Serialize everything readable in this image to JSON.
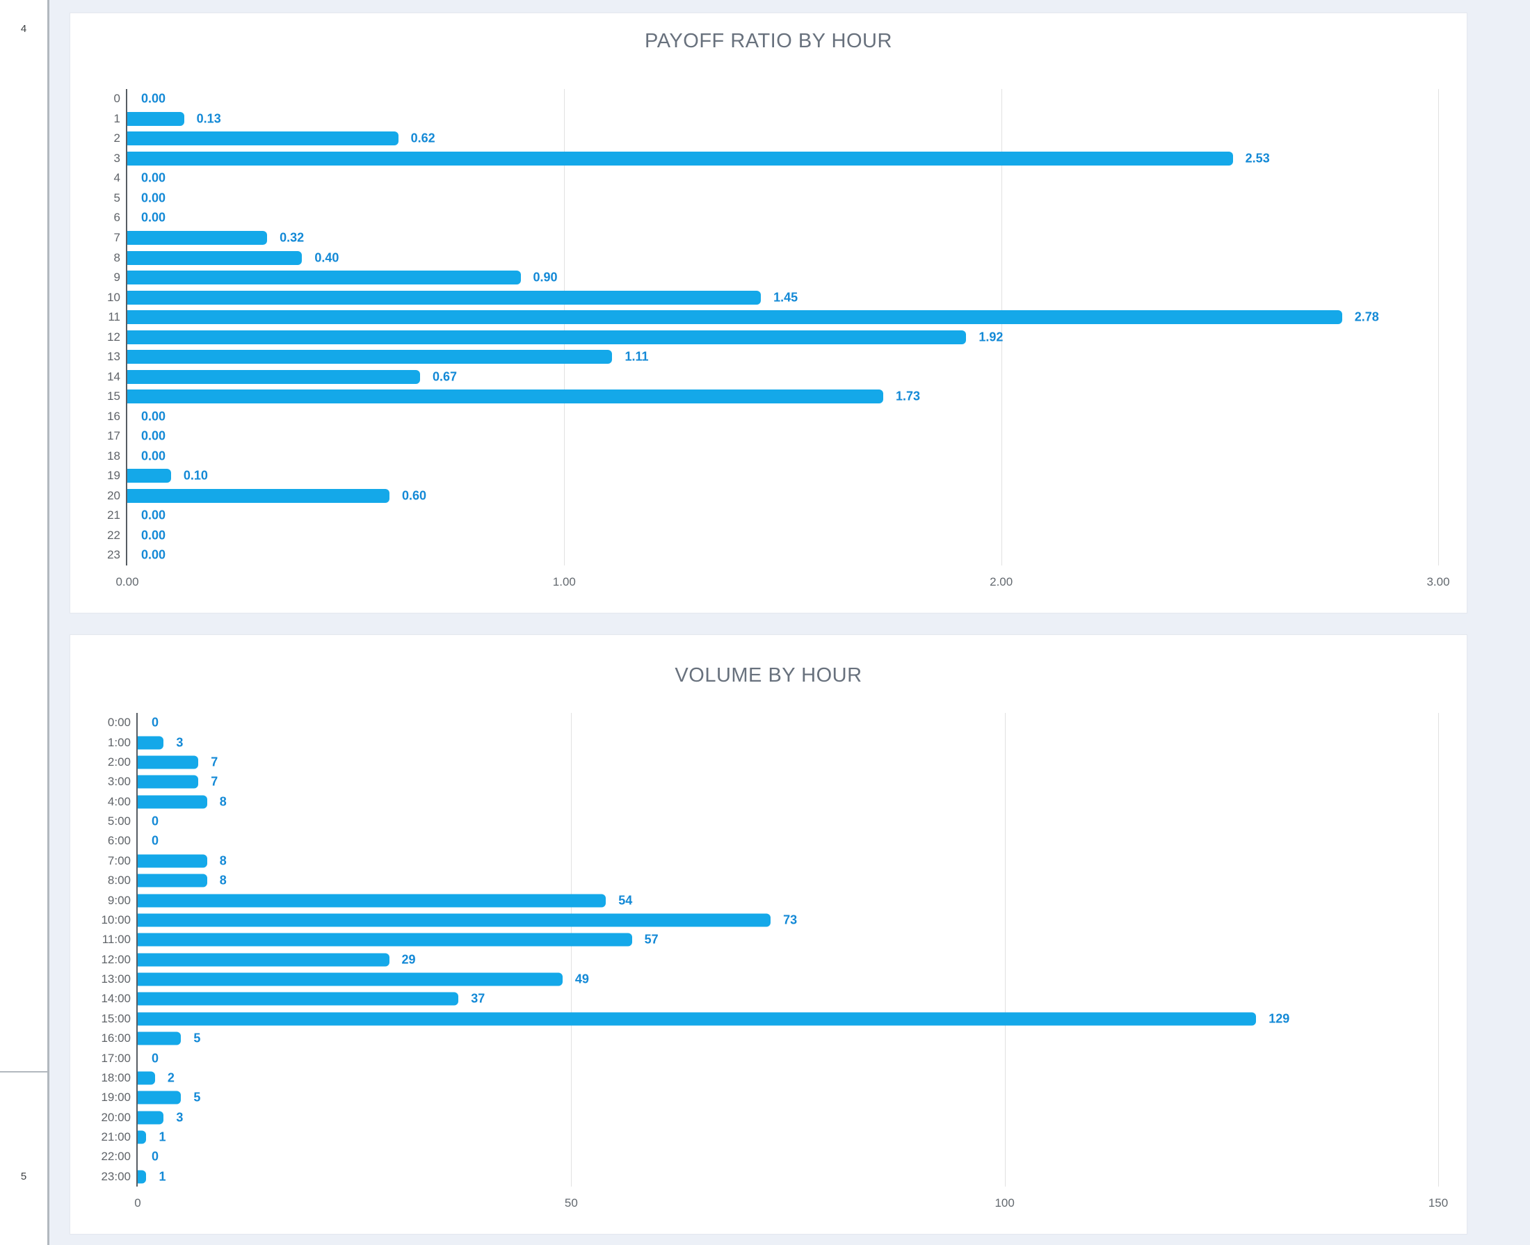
{
  "sheet": {
    "row_numbers": [
      "4",
      "5"
    ],
    "colors": {
      "bar": "#14a8e9",
      "value_label": "#1389d6",
      "title": "#68717d",
      "axis_line": "#565c62",
      "grid_line": "#e1e1e1",
      "category_label": "#5f6368",
      "tick_label": "#63696f",
      "canvas_background": "#ecf0f7",
      "card_background": "#ffffff"
    }
  },
  "chart_data": [
    {
      "type": "bar",
      "orientation": "horizontal",
      "title": "PAYOFF RATIO BY HOUR",
      "categories": [
        "0",
        "1",
        "2",
        "3",
        "4",
        "5",
        "6",
        "7",
        "8",
        "9",
        "10",
        "11",
        "12",
        "13",
        "14",
        "15",
        "16",
        "17",
        "18",
        "19",
        "20",
        "21",
        "22",
        "23"
      ],
      "values": [
        0,
        0.13,
        0.62,
        2.53,
        0,
        0,
        0,
        0.32,
        0.4,
        0.9,
        1.45,
        2.78,
        1.92,
        1.11,
        0.67,
        1.73,
        0,
        0,
        0,
        0.1,
        0.6,
        0,
        0,
        0
      ],
      "value_labels": [
        "0.00",
        "0.13",
        "0.62",
        "2.53",
        "0.00",
        "0.00",
        "0.00",
        "0.32",
        "0.40",
        "0.90",
        "1.45",
        "2.78",
        "1.92",
        "1.11",
        "0.67",
        "1.73",
        "0.00",
        "0.00",
        "0.00",
        "0.10",
        "0.60",
        "0.00",
        "0.00",
        "0.00"
      ],
      "xlabel": "",
      "ylabel": "",
      "xlim": [
        0,
        3
      ],
      "xticks": [
        {
          "label": "0.00",
          "value": 0
        },
        {
          "label": "1.00",
          "value": 1
        },
        {
          "label": "2.00",
          "value": 2
        },
        {
          "label": "3.00",
          "value": 3
        }
      ],
      "grid": true,
      "legend": "none"
    },
    {
      "type": "bar",
      "orientation": "horizontal",
      "title": "VOLUME BY HOUR",
      "categories": [
        "0:00",
        "1:00",
        "2:00",
        "3:00",
        "4:00",
        "5:00",
        "6:00",
        "7:00",
        "8:00",
        "9:00",
        "10:00",
        "11:00",
        "12:00",
        "13:00",
        "14:00",
        "15:00",
        "16:00",
        "17:00",
        "18:00",
        "19:00",
        "20:00",
        "21:00",
        "22:00",
        "23:00"
      ],
      "values": [
        0,
        3,
        7,
        7,
        8,
        0,
        0,
        8,
        8,
        54,
        73,
        57,
        29,
        49,
        37,
        129,
        5,
        0,
        2,
        5,
        3,
        1,
        0,
        1
      ],
      "value_labels": [
        "0",
        "3",
        "7",
        "7",
        "8",
        "0",
        "0",
        "8",
        "8",
        "54",
        "73",
        "57",
        "29",
        "49",
        "37",
        "129",
        "5",
        "0",
        "2",
        "5",
        "3",
        "1",
        "0",
        "1"
      ],
      "xlabel": "",
      "ylabel": "",
      "xlim": [
        0,
        150
      ],
      "xticks": [
        {
          "label": "0",
          "value": 0
        },
        {
          "label": "50",
          "value": 50
        },
        {
          "label": "100",
          "value": 100
        },
        {
          "label": "150",
          "value": 150
        }
      ],
      "grid": true,
      "legend": "none"
    }
  ]
}
